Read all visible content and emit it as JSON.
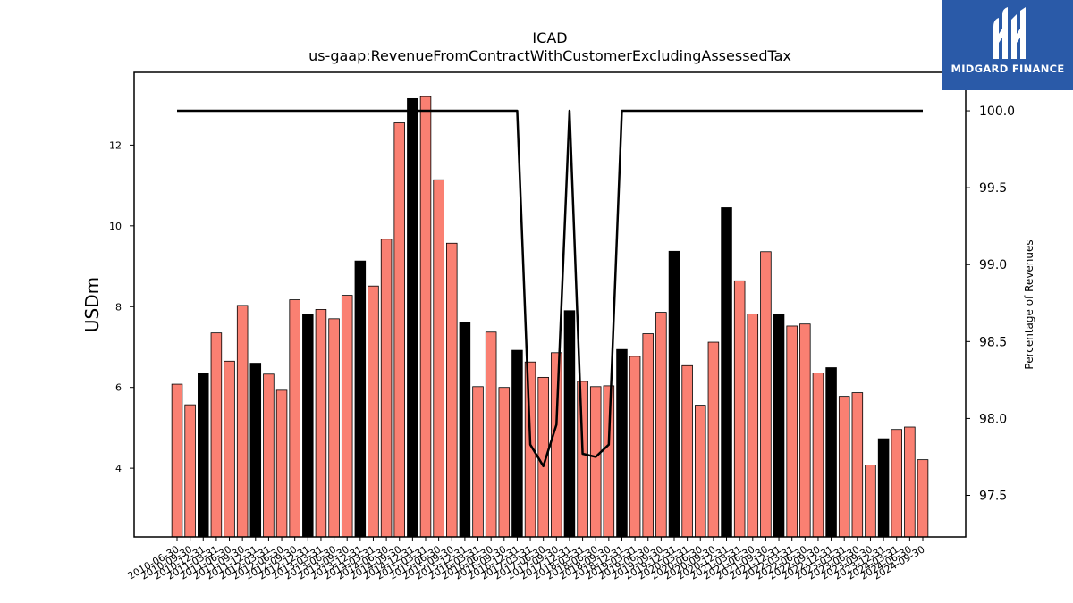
{
  "chart_data": {
    "type": "bar",
    "title": "ICAD",
    "subtitle": "us-gaap:RevenueFromContractWithCustomerExcludingAssessedTax",
    "ylabel": "USDm",
    "y2label": "Percentage of Revenues",
    "ylim": [
      2.3,
      13.8
    ],
    "y2lim": [
      97.23,
      100.25
    ],
    "yticks": [
      4,
      6,
      8,
      10,
      12
    ],
    "y2ticks": [
      "97.5",
      "98.0",
      "98.5",
      "99.0",
      "99.5",
      "100.0"
    ],
    "categories": [
      "2010-06-30",
      "2010-09-30",
      "2010-12-31",
      "2011-03-31",
      "2011-06-30",
      "2011-09-30",
      "2011-12-31",
      "2012-03-31",
      "2012-06-30",
      "2012-09-30",
      "2012-12-31",
      "2013-03-31",
      "2013-06-30",
      "2013-09-30",
      "2013-12-31",
      "2014-03-31",
      "2014-06-30",
      "2014-09-30",
      "2014-12-31",
      "2015-03-31",
      "2015-06-30",
      "2015-09-30",
      "2015-12-31",
      "2016-03-31",
      "2016-06-30",
      "2016-09-30",
      "2016-12-31",
      "2017-03-31",
      "2017-06-30",
      "2017-09-30",
      "2017-12-31",
      "2018-03-31",
      "2018-06-30",
      "2018-09-30",
      "2018-12-31",
      "2019-03-31",
      "2019-06-30",
      "2019-09-30",
      "2019-12-31",
      "2020-03-31",
      "2020-06-30",
      "2020-09-30",
      "2020-12-31",
      "2021-03-31",
      "2021-06-30",
      "2021-09-30",
      "2021-12-31",
      "2022-03-31",
      "2022-06-30",
      "2022-09-30",
      "2022-12-31",
      "2023-03-31",
      "2023-06-30",
      "2023-09-30",
      "2023-12-31",
      "2024-03-31",
      "2024-06-30",
      "2024-09-30"
    ],
    "series": [
      {
        "values": [
          6.08,
          5.57,
          6.35,
          7.35,
          6.65,
          8.03,
          6.6,
          6.33,
          5.93,
          8.17,
          7.81,
          7.93,
          7.7,
          8.28,
          9.13,
          8.51,
          9.67,
          12.55,
          13.15,
          13.2,
          11.14,
          9.57,
          7.61,
          6.02,
          7.37,
          6.0,
          6.92,
          6.63,
          6.25,
          6.86,
          7.9,
          6.15,
          6.02,
          6.04,
          6.94,
          6.77,
          7.33,
          7.86,
          9.37,
          6.54,
          5.56,
          7.12,
          10.45,
          8.64,
          7.82,
          9.36,
          7.82,
          7.52,
          7.57,
          6.36,
          6.49,
          5.78,
          5.87,
          4.08,
          4.73,
          4.96,
          5.02,
          4.21
        ],
        "annual_marker": [
          false,
          false,
          true,
          false,
          false,
          false,
          true,
          false,
          false,
          false,
          true,
          false,
          false,
          false,
          true,
          false,
          false,
          false,
          true,
          false,
          false,
          false,
          true,
          false,
          false,
          false,
          true,
          false,
          false,
          false,
          true,
          false,
          false,
          false,
          true,
          false,
          false,
          false,
          true,
          false,
          false,
          false,
          true,
          false,
          false,
          false,
          true,
          false,
          false,
          false,
          true,
          false,
          false,
          false,
          true,
          false,
          false,
          false
        ]
      },
      {
        "axis": "right",
        "values": [
          100.0,
          100.0,
          100.0,
          100.0,
          100.0,
          100.0,
          100.0,
          100.0,
          100.0,
          100.0,
          100.0,
          100.0,
          100.0,
          100.0,
          100.0,
          100.0,
          100.0,
          100.0,
          100.0,
          100.0,
          100.0,
          100.0,
          100.0,
          100.0,
          100.0,
          100.0,
          100.0,
          97.83,
          97.69,
          97.96,
          100.0,
          97.77,
          97.75,
          97.83,
          100.0,
          100.0,
          100.0,
          100.0,
          100.0,
          100.0,
          100.0,
          100.0,
          100.0,
          100.0,
          100.0,
          100.0,
          100.0,
          100.0,
          100.0,
          100.0,
          100.0,
          100.0,
          100.0,
          100.0,
          100.0,
          100.0,
          100.0,
          100.0
        ]
      }
    ],
    "colors": {
      "bar": "#fa8072",
      "annual_bar": "#000000",
      "line": "#000000"
    },
    "grid": false
  },
  "branding": {
    "logo_text": "MIDGARD FINANCE",
    "logo_color": "#2a5aa8"
  }
}
